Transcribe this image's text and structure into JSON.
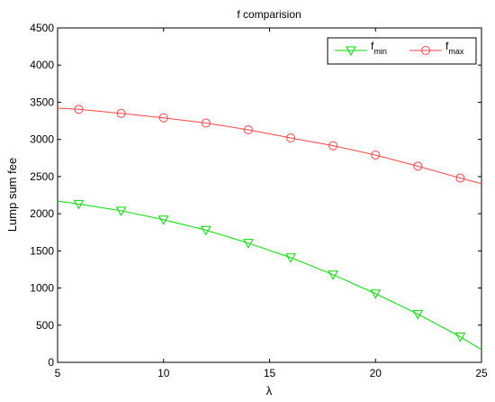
{
  "chart_data": {
    "type": "line",
    "title": "f comparision",
    "xlabel": "λ",
    "ylabel": "Lump sum fee",
    "xlim": [
      5,
      25
    ],
    "ylim": [
      0,
      4500
    ],
    "xticks": [
      "5",
      "10",
      "15",
      "20",
      "25"
    ],
    "yticks": [
      "0",
      "500",
      "1000",
      "1500",
      "2000",
      "2500",
      "3000",
      "3500",
      "4000",
      "4500"
    ],
    "grid": false,
    "legend_position": "top-right",
    "x": [
      6,
      8,
      10,
      12,
      14,
      16,
      18,
      20,
      22,
      24
    ],
    "series": [
      {
        "name": "f",
        "subscript": "min",
        "color": "#00dd00",
        "marker": "triangle-down",
        "values": [
          2130,
          2040,
          1920,
          1780,
          1605,
          1410,
          1180,
          925,
          650,
          345
        ],
        "curve_x": [
          5,
          6,
          8,
          10,
          12,
          14,
          16,
          18,
          20,
          22,
          24,
          25
        ],
        "curve_y": [
          2170,
          2130,
          2040,
          1920,
          1780,
          1605,
          1410,
          1180,
          925,
          650,
          345,
          170
        ]
      },
      {
        "name": "f",
        "subscript": "max",
        "color": "#ff4444",
        "marker": "circle",
        "values": [
          3405,
          3350,
          3290,
          3220,
          3130,
          3020,
          2915,
          2790,
          2640,
          2480
        ],
        "curve_x": [
          5,
          6,
          8,
          10,
          12,
          14,
          16,
          18,
          20,
          22,
          24,
          25
        ],
        "curve_y": [
          3420,
          3405,
          3350,
          3290,
          3220,
          3130,
          3020,
          2915,
          2790,
          2640,
          2480,
          2405
        ]
      }
    ]
  }
}
